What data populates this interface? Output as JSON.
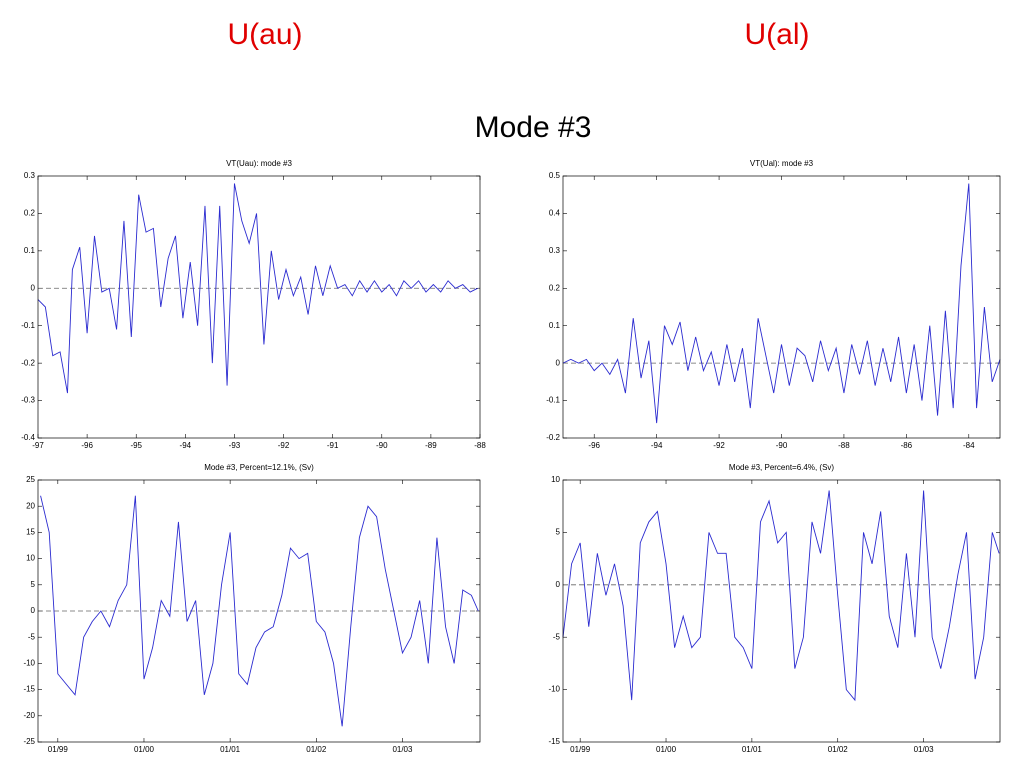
{
  "slide": {
    "left_heading": "U(au)",
    "right_heading": "U(al)",
    "title": "Mode #3"
  },
  "chart_data": [
    {
      "type": "line",
      "title": "VT(Uau): mode #3",
      "color": "#2b2bd0",
      "reference_line": 0,
      "xlim": [
        -97,
        -88
      ],
      "xticks": [
        -97,
        -96,
        -95,
        -94,
        -93,
        -92,
        -91,
        -90,
        -89,
        -88
      ],
      "ylim": [
        -0.4,
        0.3
      ],
      "yticks": [
        -0.4,
        -0.3,
        -0.2,
        -0.1,
        0,
        0.1,
        0.2,
        0.3
      ],
      "x": [
        -97,
        -96.85,
        -96.7,
        -96.55,
        -96.4,
        -96.3,
        -96.15,
        -96,
        -95.85,
        -95.7,
        -95.55,
        -95.4,
        -95.25,
        -95.1,
        -94.95,
        -94.8,
        -94.65,
        -94.5,
        -94.35,
        -94.2,
        -94.05,
        -93.9,
        -93.75,
        -93.6,
        -93.45,
        -93.3,
        -93.15,
        -93,
        -92.85,
        -92.7,
        -92.55,
        -92.4,
        -92.25,
        -92.1,
        -91.95,
        -91.8,
        -91.65,
        -91.5,
        -91.35,
        -91.2,
        -91.05,
        -90.9,
        -90.75,
        -90.6,
        -90.45,
        -90.3,
        -90.15,
        -90,
        -89.85,
        -89.7,
        -89.55,
        -89.4,
        -89.25,
        -89.1,
        -88.95,
        -88.8,
        -88.65,
        -88.5,
        -88.35,
        -88.2,
        -88.05
      ],
      "values": [
        -0.03,
        -0.05,
        -0.18,
        -0.17,
        -0.28,
        0.05,
        0.11,
        -0.12,
        0.14,
        -0.01,
        0,
        -0.11,
        0.18,
        -0.13,
        0.25,
        0.15,
        0.16,
        -0.05,
        0.08,
        0.14,
        -0.08,
        0.07,
        -0.1,
        0.22,
        -0.2,
        0.22,
        -0.26,
        0.28,
        0.18,
        0.12,
        0.2,
        -0.15,
        0.1,
        -0.03,
        0.05,
        -0.02,
        0.03,
        -0.07,
        0.06,
        -0.02,
        0.06,
        0,
        0.01,
        -0.02,
        0.02,
        -0.01,
        0.02,
        -0.01,
        0.01,
        -0.02,
        0.02,
        0,
        0.02,
        -0.01,
        0.01,
        -0.01,
        0.02,
        0,
        0.01,
        -0.01,
        0
      ]
    },
    {
      "type": "line",
      "title": "VT(Ual): mode #3",
      "color": "#2b2bd0",
      "reference_line": 0,
      "xlim": [
        -97,
        -83
      ],
      "xticks": [
        -96,
        -94,
        -92,
        -90,
        -88,
        -86,
        -84
      ],
      "ylim": [
        -0.2,
        0.5
      ],
      "yticks": [
        -0.2,
        -0.1,
        0,
        0.1,
        0.2,
        0.3,
        0.4,
        0.5
      ],
      "x": [
        -97,
        -96.75,
        -96.5,
        -96.25,
        -96,
        -95.75,
        -95.5,
        -95.25,
        -95,
        -94.75,
        -94.5,
        -94.25,
        -94,
        -93.75,
        -93.5,
        -93.25,
        -93,
        -92.75,
        -92.5,
        -92.25,
        -92,
        -91.75,
        -91.5,
        -91.25,
        -91,
        -90.75,
        -90.5,
        -90.25,
        -90,
        -89.75,
        -89.5,
        -89.25,
        -89,
        -88.75,
        -88.5,
        -88.25,
        -88,
        -87.75,
        -87.5,
        -87.25,
        -87,
        -86.75,
        -86.5,
        -86.25,
        -86,
        -85.75,
        -85.5,
        -85.25,
        -85,
        -84.75,
        -84.5,
        -84.25,
        -84,
        -83.75,
        -83.5,
        -83.25,
        -83
      ],
      "values": [
        0,
        0.01,
        0,
        0.01,
        -0.02,
        0,
        -0.03,
        0.01,
        -0.08,
        0.12,
        -0.04,
        0.06,
        -0.16,
        0.1,
        0.05,
        0.11,
        -0.02,
        0.07,
        -0.02,
        0.03,
        -0.06,
        0.05,
        -0.05,
        0.04,
        -0.12,
        0.12,
        0.02,
        -0.08,
        0.05,
        -0.06,
        0.04,
        0.02,
        -0.05,
        0.06,
        -0.02,
        0.04,
        -0.08,
        0.05,
        -0.03,
        0.06,
        -0.06,
        0.04,
        -0.05,
        0.07,
        -0.08,
        0.05,
        -0.1,
        0.1,
        -0.14,
        0.14,
        -0.12,
        0.26,
        0.48,
        -0.12,
        0.15,
        -0.05,
        0.01
      ]
    },
    {
      "type": "line",
      "title": "Mode #3, Percent=12.1%, (Sv)",
      "color": "#2b2bd0",
      "reference_line": 0,
      "xlim": [
        1998.77,
        2003.9
      ],
      "xticks": [
        {
          "value": 1999,
          "label": "01/99"
        },
        {
          "value": 2000,
          "label": "01/00"
        },
        {
          "value": 2001,
          "label": "01/01"
        },
        {
          "value": 2002,
          "label": "01/02"
        },
        {
          "value": 2003,
          "label": "01/03"
        }
      ],
      "ylim": [
        -25,
        25
      ],
      "yticks": [
        -25,
        -20,
        -15,
        -10,
        -5,
        0,
        5,
        10,
        15,
        20,
        25
      ],
      "x": [
        1998.8,
        1998.9,
        1999.0,
        1999.1,
        1999.2,
        1999.3,
        1999.4,
        1999.5,
        1999.6,
        1999.7,
        1999.8,
        1999.9,
        2000.0,
        2000.1,
        2000.2,
        2000.3,
        2000.4,
        2000.5,
        2000.6,
        2000.7,
        2000.8,
        2000.9,
        2001.0,
        2001.1,
        2001.2,
        2001.3,
        2001.4,
        2001.5,
        2001.6,
        2001.7,
        2001.8,
        2001.9,
        2002.0,
        2002.1,
        2002.2,
        2002.3,
        2002.4,
        2002.5,
        2002.6,
        2002.7,
        2002.8,
        2002.9,
        2003.0,
        2003.1,
        2003.2,
        2003.3,
        2003.4,
        2003.5,
        2003.6,
        2003.7,
        2003.8,
        2003.88
      ],
      "values": [
        22,
        15,
        -12,
        -14,
        -16,
        -5,
        -2,
        0,
        -3,
        2,
        5,
        22,
        -13,
        -7,
        2,
        -1,
        17,
        -2,
        2,
        -16,
        -10,
        5,
        15,
        -12,
        -14,
        -7,
        -4,
        -3,
        3,
        12,
        10,
        11,
        -2,
        -4,
        -10,
        -22,
        -3,
        14,
        20,
        18,
        8,
        0,
        -8,
        -5,
        2,
        -10,
        14,
        -3,
        -10,
        4,
        3,
        0
      ]
    },
    {
      "type": "line",
      "title": "Mode #3, Percent=6.4%, (Sv)",
      "color": "#2b2bd0",
      "reference_line": 0,
      "xlim": [
        1998.8,
        2003.89
      ],
      "xticks": [
        {
          "value": 1999,
          "label": "01/99"
        },
        {
          "value": 2000,
          "label": "01/00"
        },
        {
          "value": 2001,
          "label": "01/01"
        },
        {
          "value": 2002,
          "label": "01/02"
        },
        {
          "value": 2003,
          "label": "01/03"
        }
      ],
      "ylim": [
        -15,
        10
      ],
      "yticks": [
        -15,
        -10,
        -5,
        0,
        5,
        10
      ],
      "x": [
        1998.8,
        1998.9,
        1999.0,
        1999.1,
        1999.2,
        1999.3,
        1999.4,
        1999.5,
        1999.6,
        1999.7,
        1999.8,
        1999.9,
        2000.0,
        2000.1,
        2000.2,
        2000.3,
        2000.4,
        2000.5,
        2000.6,
        2000.7,
        2000.8,
        2000.9,
        2001.0,
        2001.1,
        2001.2,
        2001.3,
        2001.4,
        2001.5,
        2001.6,
        2001.7,
        2001.8,
        2001.9,
        2002.0,
        2002.1,
        2002.2,
        2002.3,
        2002.4,
        2002.5,
        2002.6,
        2002.7,
        2002.8,
        2002.9,
        2003.0,
        2003.1,
        2003.2,
        2003.3,
        2003.4,
        2003.5,
        2003.6,
        2003.7,
        2003.8,
        2003.88
      ],
      "values": [
        -5,
        2,
        4,
        -4,
        3,
        -1,
        2,
        -2,
        -11,
        4,
        6,
        7,
        2,
        -6,
        -3,
        -6,
        -5,
        5,
        3,
        3,
        -5,
        -6,
        -8,
        6,
        8,
        4,
        5,
        -8,
        -5,
        6,
        3,
        9,
        -1,
        -10,
        -11,
        5,
        2,
        7,
        -3,
        -6,
        3,
        -5,
        9,
        -5,
        -8,
        -4,
        1,
        5,
        -9,
        -5,
        5,
        3
      ]
    }
  ]
}
